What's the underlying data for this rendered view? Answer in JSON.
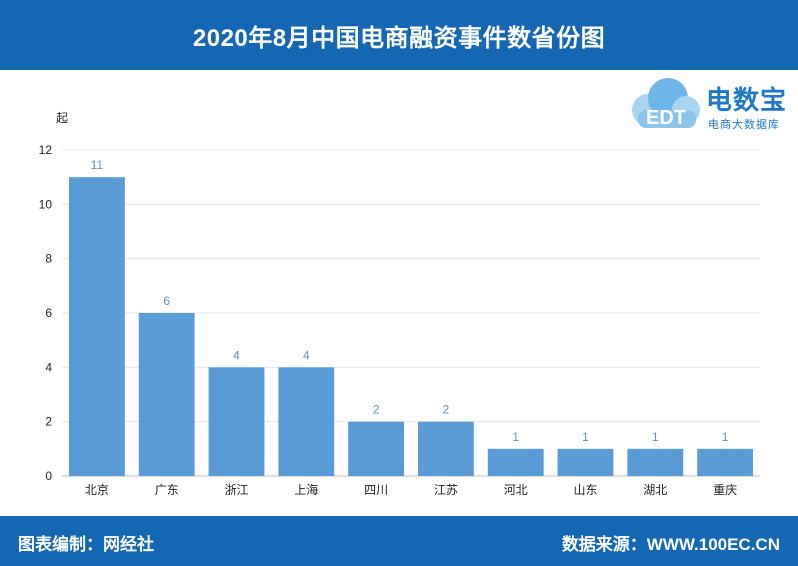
{
  "header": {
    "title": "2020年8月中国电商融资事件数省份图"
  },
  "logo": {
    "brand": "电数宝",
    "sub": "电商大数据库",
    "mark": "EDT"
  },
  "footer": {
    "left": "图表编制：网经社",
    "right": "数据来源：WWW.100EC.CN"
  },
  "colors": {
    "header_bg": "#1467b3",
    "bar": "#5b9bd5",
    "label": "#5b8fc6"
  },
  "chart_data": {
    "type": "bar",
    "title": "2020年8月中国电商融资事件数省份图",
    "ylabel": "起",
    "xlabel": "",
    "categories": [
      "北京",
      "广东",
      "浙江",
      "上海",
      "四川",
      "江苏",
      "河北",
      "山东",
      "湖北",
      "重庆"
    ],
    "values": [
      11,
      6,
      4,
      4,
      2,
      2,
      1,
      1,
      1,
      1
    ],
    "ylim": [
      0,
      12
    ],
    "yticks": [
      0,
      2,
      4,
      6,
      8,
      10,
      12
    ],
    "grid": true,
    "data_labels": true
  }
}
